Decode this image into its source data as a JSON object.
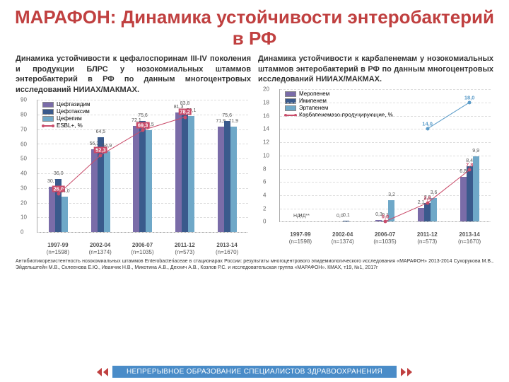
{
  "title": "МАРАФОН: Динамика устойчивости энтеробактерий в РФ",
  "left": {
    "para": "Динамика устойчивости к цефалоспоринам III-IV поколения и продукции БЛРС у нозокомиальных штаммов энтеробактерий в РФ по данным многоцентровых исследований НИИАХ/МАКМАХ.",
    "type": "grouped-bar+line",
    "ylim": [
      0,
      90
    ],
    "ytick_step": 10,
    "legend": [
      {
        "label": "Цефтазидим",
        "color": "#7a6ca8"
      },
      {
        "label": "Цефотаксим",
        "color": "#3a5a8c"
      },
      {
        "label": "Цефепим",
        "color": "#6fa8c8"
      },
      {
        "label": "ESBL+, %",
        "color": "#c94c6a",
        "kind": "line"
      }
    ],
    "categories": [
      {
        "period": "1997-99",
        "n": "(n=1598)"
      },
      {
        "period": "2002-04",
        "n": "(n=1374)"
      },
      {
        "period": "2006-07",
        "n": "(n=1035)"
      },
      {
        "period": "2011-12",
        "n": "(n=573)"
      },
      {
        "period": "2013-14",
        "n": "(n=1670)"
      }
    ],
    "bars": [
      [
        30.7,
        36.0,
        24.0
      ],
      [
        56.3,
        64.5,
        54.9
      ],
      [
        72.1,
        75.6,
        69.5
      ],
      [
        81.3,
        83.8,
        79.1
      ],
      [
        71.9,
        75.6,
        71.9
      ]
    ],
    "line": [
      26.0,
      52.3,
      69.3,
      78.2,
      null
    ],
    "line_color": "#c94c6a",
    "line_label_bg": "#c94c6a",
    "line_label_fg": "#ffffff"
  },
  "right": {
    "para": "Динамика устойчивости к карбапенемам у нозокомиальных штаммов энтеробактерий в РФ по данным многоцентровых исследований НИИАХ/МАКМАХ.",
    "type": "grouped-bar+line",
    "ylim": [
      0,
      20
    ],
    "ytick_step": 2,
    "legend": [
      {
        "label": "Меропенем",
        "color": "#7a6ca8"
      },
      {
        "label": "Имипенем",
        "color": "#3a5a8c"
      },
      {
        "label": "Эртапенем",
        "color": "#6fa8c8"
      },
      {
        "label": "Карбапенемазо-продуцирующие, %",
        "color": "#c94c6a",
        "kind": "line"
      }
    ],
    "categories": [
      {
        "period": "1997-99",
        "n": "(n=1598)"
      },
      {
        "period": "2002-04",
        "n": "(n=1374)"
      },
      {
        "period": "2006-07",
        "n": "(n=1035)"
      },
      {
        "period": "2011-12",
        "n": "(n=573)"
      },
      {
        "period": "2013-14",
        "n": "(n=1670)"
      }
    ],
    "bars": [
      [
        0,
        0,
        null
      ],
      [
        0,
        0.1,
        null
      ],
      [
        0.3,
        0.1,
        3.2
      ],
      [
        2.1,
        2.8,
        3.6
      ],
      [
        6.8,
        8.4,
        9.9
      ]
    ],
    "bar_text_override": [
      [
        "НД*",
        "НД**",
        null
      ],
      null,
      null,
      null,
      null
    ],
    "line": [
      null,
      null,
      0.0,
      2.8,
      7.8
    ],
    "line2": [
      null,
      null,
      null,
      14.0,
      18.0
    ],
    "line_color": "#c94c6a",
    "line2_color": "#5a9bc8",
    "line2_values": [
      8.5
    ]
  },
  "citation": "Антибиотикорезистентность нозокомиальных штаммов Enterobacteriaceae в стационарах России: результаты многоцентрового эпидемиологического исследования «МАРАФОН» 2013-2014 Сухорукова М.В., Эйдельштейн М.В., Склеенова Е.Ю., Иванчик Н.В., Микотина А.В., Дехнич А.В., Козлов Р.С. и исследовательская группа «МАРАФОН». КМАХ, т19, №1, 2017г",
  "footer": "НЕПРЕРЫВНОЕ ОБРАЗОВАНИЕ СПЕЦИАЛИСТОВ ЗДРАВООХРАНЕНИЯ",
  "colors": {
    "title": "#c04040",
    "banner": "#4a8cc8"
  }
}
